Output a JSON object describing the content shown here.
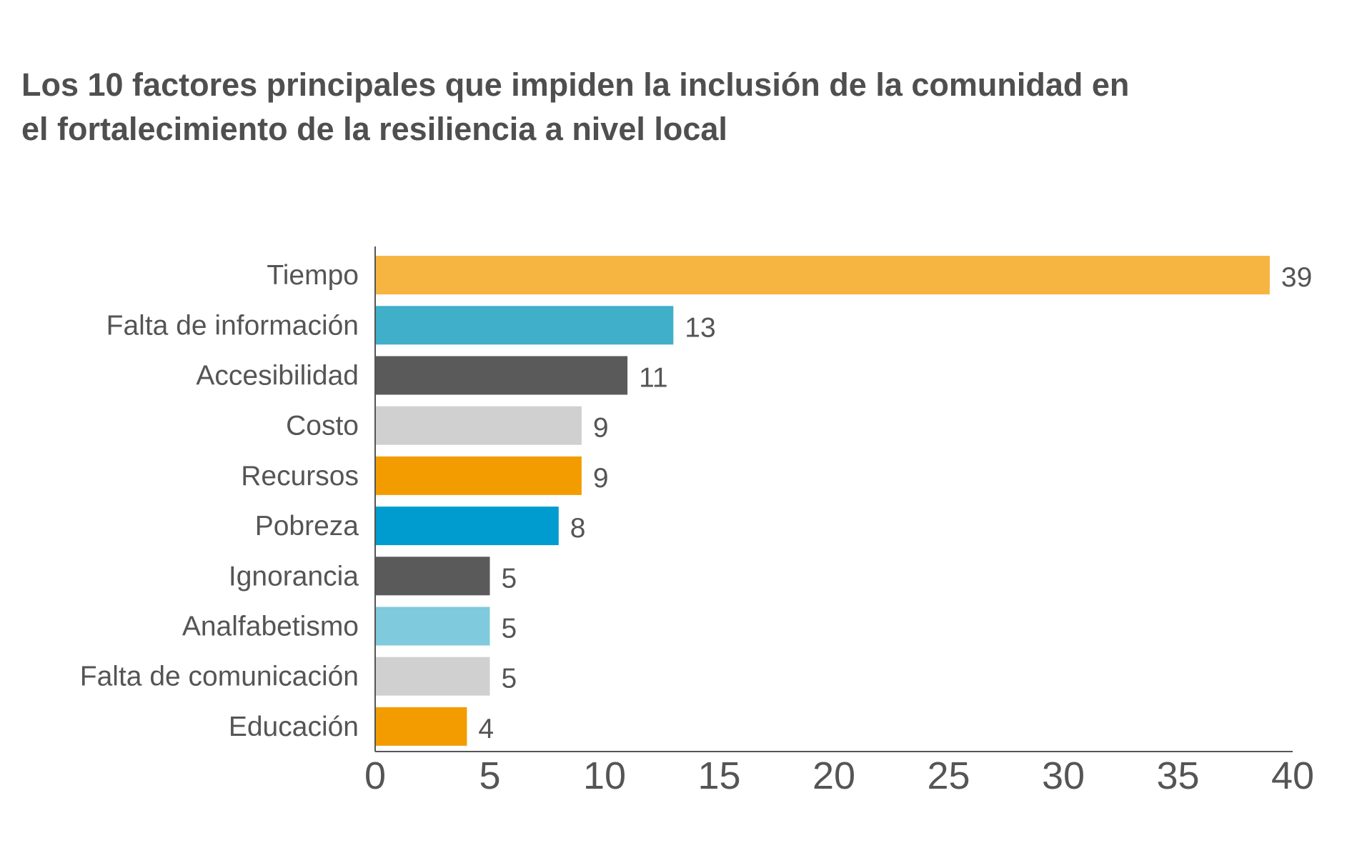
{
  "chart_data": {
    "type": "bar",
    "orientation": "horizontal",
    "title": "Los 10 factores principales que impiden la inclusión de la comunidad en\nel fortalecimiento de la resiliencia a nivel local",
    "categories": [
      "Tiempo",
      "Falta de información",
      "Accesibilidad",
      "Costo",
      "Recursos",
      "Pobreza",
      "Ignorancia",
      "Analfabetismo",
      "Falta de comunicación",
      "Educación"
    ],
    "values": [
      39,
      13,
      11,
      9,
      9,
      8,
      5,
      5,
      5,
      4
    ],
    "data_labels": [
      "39",
      "13",
      "11",
      "9",
      "9",
      "8",
      "5",
      "5",
      "5",
      "4"
    ],
    "bar_colors": [
      "#F6B540",
      "#40AFC9",
      "#5A5A5A",
      "#D0D0D0",
      "#F39C00",
      "#009CCF",
      "#5A5A5A",
      "#7FCADC",
      "#D0D0D0",
      "#F39C00"
    ],
    "xlim": [
      0,
      40
    ],
    "xticks": [
      0,
      5,
      10,
      15,
      20,
      25,
      30,
      35,
      40
    ],
    "xtick_labels": [
      "0",
      "5",
      "10",
      "15",
      "20",
      "25",
      "30",
      "35",
      "40"
    ],
    "grid": false,
    "legend": "none"
  }
}
